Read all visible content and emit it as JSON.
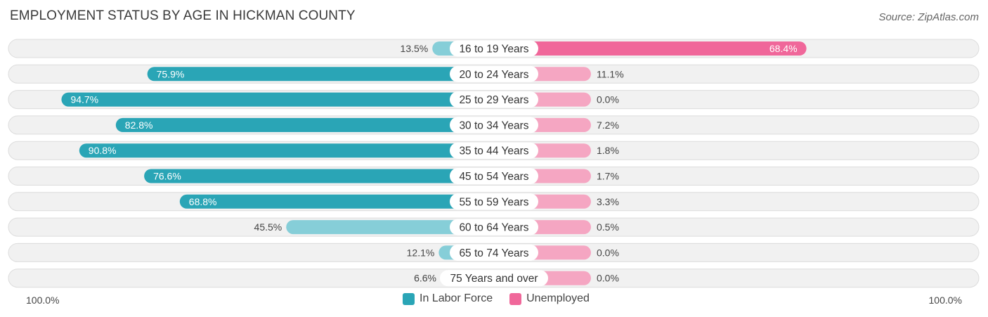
{
  "header": {
    "title": "EMPLOYMENT STATUS BY AGE IN HICKMAN COUNTY",
    "source": "Source: ZipAtlas.com"
  },
  "colors": {
    "labor_strong": "#2aa5b6",
    "labor_light": "#86ced8",
    "unemp_strong": "#f0679a",
    "unemp_light": "#f5a6c2"
  },
  "chart_data": {
    "type": "bar",
    "orientation": "diverging-horizontal",
    "title": "EMPLOYMENT STATUS BY AGE IN HICKMAN COUNTY",
    "categories": [
      "16 to 19 Years",
      "20 to 24 Years",
      "25 to 29 Years",
      "30 to 34 Years",
      "35 to 44 Years",
      "45 to 54 Years",
      "55 to 59 Years",
      "60 to 64 Years",
      "65 to 74 Years",
      "75 Years and over"
    ],
    "series": [
      {
        "name": "In Labor Force",
        "values": [
          13.5,
          75.9,
          94.7,
          82.8,
          90.8,
          76.6,
          68.8,
          45.5,
          12.1,
          6.6
        ]
      },
      {
        "name": "Unemployed",
        "values": [
          68.4,
          11.1,
          0.0,
          7.2,
          1.8,
          1.7,
          3.3,
          0.5,
          0.0,
          0.0
        ]
      }
    ],
    "value_labels": {
      "In Labor Force": [
        "13.5%",
        "75.9%",
        "94.7%",
        "82.8%",
        "90.8%",
        "76.6%",
        "68.8%",
        "45.5%",
        "12.1%",
        "6.6%"
      ],
      "Unemployed": [
        "68.4%",
        "11.1%",
        "0.0%",
        "7.2%",
        "1.8%",
        "1.7%",
        "3.3%",
        "0.5%",
        "0.0%",
        "0.0%"
      ]
    },
    "axis": {
      "left_label": "100.0%",
      "right_label": "100.0%",
      "max": 100
    },
    "legend": {
      "position": "bottom-center",
      "items": [
        "In Labor Force",
        "Unemployed"
      ]
    }
  }
}
